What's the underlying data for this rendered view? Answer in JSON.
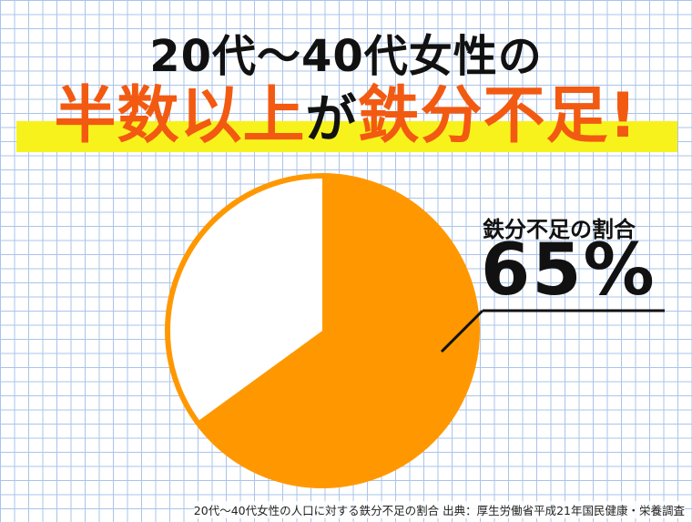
{
  "headline": {
    "line1": "20代〜40代女性の",
    "line2_part1": "半数以上",
    "line2_part2": "が",
    "line2_part3": "鉄分不足!"
  },
  "callout": {
    "label": "鉄分不足の割合",
    "value": "65%"
  },
  "source_note": "20代〜40代女性の人口に対する鉄分不足の割合 出典：厚生労働省平成21年国民健康・栄養調査",
  "colors": {
    "accent": "#f25a12",
    "pie_fill": "#ff9800",
    "pie_border": "#ff9800",
    "pie_rest": "#ffffff",
    "highlight": "#f8f21c"
  },
  "chart_data": {
    "type": "pie",
    "title": "",
    "slices": [
      {
        "label": "鉄分不足",
        "value": 65
      },
      {
        "label": "",
        "value": 35
      }
    ]
  }
}
